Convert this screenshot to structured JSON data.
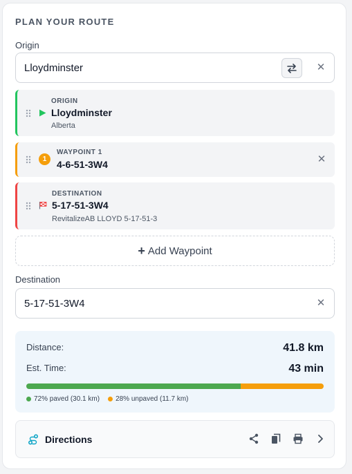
{
  "header": {
    "title": "PLAN YOUR ROUTE"
  },
  "origin_field": {
    "label": "Origin",
    "value": "Lloydminster"
  },
  "stops": {
    "origin": {
      "kind": "ORIGIN",
      "name": "Lloydminster",
      "sub": "Alberta"
    },
    "waypoint": {
      "kind": "WAYPOINT 1",
      "number": "1",
      "name": "4-6-51-3W4"
    },
    "destination": {
      "kind": "DESTINATION",
      "name": "5-17-51-3W4",
      "sub": "RevitalizeAB LLOYD 5-17-51-3"
    }
  },
  "add_waypoint": {
    "label": "Add Waypoint"
  },
  "destination_field": {
    "label": "Destination",
    "value": "5-17-51-3W4"
  },
  "summary": {
    "distance_label": "Distance:",
    "distance_value": "41.8 km",
    "time_label": "Est. Time:",
    "time_value": "43 min",
    "paved_fraction": 0.72,
    "unpaved_fraction": 0.28,
    "paved_text": "72% paved (30.1 km)",
    "unpaved_text": "28% unpaved (11.7 km)"
  },
  "directions": {
    "label": "Directions"
  },
  "colors": {
    "origin": "#22c55e",
    "waypoint": "#f59e0b",
    "destination": "#ef4444",
    "paved": "#4ca84f",
    "unpaved": "#f59e0b",
    "accent": "#0ea5c6"
  },
  "icons": [
    "swap-icon",
    "clear-icon",
    "drag-handle-icon",
    "play-icon",
    "flag-icon",
    "plus-icon",
    "route-icon",
    "share-icon",
    "copy-icon",
    "print-icon",
    "chevron-right-icon"
  ]
}
